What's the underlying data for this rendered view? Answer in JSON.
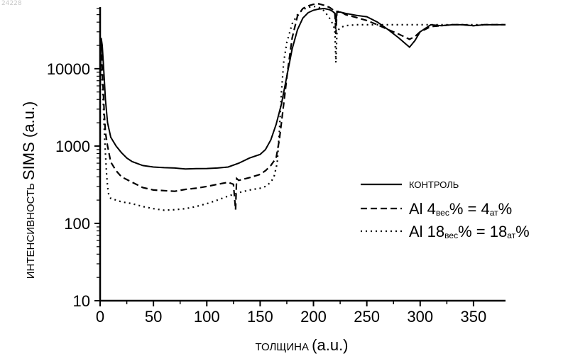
{
  "corner_id": "24228",
  "chart_data": {
    "type": "line",
    "title": "",
    "xlabel": {
      "word": "ТОЛЩИНА",
      "unit": "(a.u.)"
    },
    "ylabel": {
      "word": "ИНТЕНСИВНОСТЬ",
      "unit": "SIMS (a.u.)"
    },
    "xlim": [
      0,
      380
    ],
    "ylim": [
      10,
      60000
    ],
    "yscale": "log",
    "x_ticks": [
      0,
      50,
      100,
      150,
      200,
      250,
      300,
      350
    ],
    "x_tick_labels": [
      "0",
      "50",
      "100",
      "150",
      "200",
      "250",
      "300",
      "350"
    ],
    "y_ticks": [
      10,
      100,
      1000,
      10000
    ],
    "y_tick_labels": [
      "10",
      "100",
      "1000",
      "10000"
    ],
    "grid": false,
    "legend_position": "right-center",
    "series": [
      {
        "name": "КОНТРОЛЬ",
        "style": "solid",
        "color": "#000000",
        "points": [
          [
            0,
            5000
          ],
          [
            1,
            25000
          ],
          [
            2,
            20000
          ],
          [
            3,
            12000
          ],
          [
            4,
            7000
          ],
          [
            5,
            4000
          ],
          [
            7,
            2000
          ],
          [
            10,
            1300
          ],
          [
            15,
            1000
          ],
          [
            20,
            820
          ],
          [
            25,
            700
          ],
          [
            30,
            630
          ],
          [
            40,
            560
          ],
          [
            50,
            535
          ],
          [
            60,
            525
          ],
          [
            70,
            520
          ],
          [
            80,
            505
          ],
          [
            90,
            510
          ],
          [
            100,
            512
          ],
          [
            110,
            520
          ],
          [
            120,
            535
          ],
          [
            130,
            600
          ],
          [
            140,
            700
          ],
          [
            150,
            780
          ],
          [
            155,
            900
          ],
          [
            160,
            1200
          ],
          [
            165,
            1900
          ],
          [
            170,
            3500
          ],
          [
            175,
            8000
          ],
          [
            180,
            18000
          ],
          [
            185,
            32000
          ],
          [
            190,
            45000
          ],
          [
            195,
            53000
          ],
          [
            200,
            57000
          ],
          [
            205,
            59000
          ],
          [
            210,
            60000
          ],
          [
            215,
            58000
          ],
          [
            218,
            55000
          ],
          [
            220,
            52000
          ],
          [
            221,
            40000
          ],
          [
            222,
            54000
          ],
          [
            225,
            54000
          ],
          [
            230,
            52000
          ],
          [
            240,
            49000
          ],
          [
            250,
            47000
          ],
          [
            260,
            40000
          ],
          [
            270,
            32000
          ],
          [
            280,
            25000
          ],
          [
            288,
            20000
          ],
          [
            290,
            19000
          ],
          [
            295,
            23000
          ],
          [
            300,
            30000
          ],
          [
            310,
            37000
          ],
          [
            320,
            36000
          ],
          [
            330,
            37000
          ],
          [
            340,
            37000
          ],
          [
            350,
            36000
          ],
          [
            360,
            37000
          ],
          [
            370,
            37000
          ],
          [
            380,
            37000
          ]
        ]
      },
      {
        "name": "Al 4вес% = 4ат%",
        "style": "dashed",
        "color": "#000000",
        "points": [
          [
            0,
            8000
          ],
          [
            1,
            20000
          ],
          [
            2,
            10000
          ],
          [
            3,
            5000
          ],
          [
            4,
            2500
          ],
          [
            5,
            1500
          ],
          [
            7,
            1000
          ],
          [
            10,
            620
          ],
          [
            15,
            480
          ],
          [
            20,
            400
          ],
          [
            30,
            340
          ],
          [
            40,
            290
          ],
          [
            50,
            270
          ],
          [
            60,
            265
          ],
          [
            70,
            260
          ],
          [
            80,
            275
          ],
          [
            90,
            285
          ],
          [
            100,
            300
          ],
          [
            110,
            320
          ],
          [
            120,
            340
          ],
          [
            125,
            320
          ],
          [
            127,
            150
          ],
          [
            128,
            380
          ],
          [
            130,
            360
          ],
          [
            140,
            390
          ],
          [
            150,
            430
          ],
          [
            155,
            480
          ],
          [
            160,
            560
          ],
          [
            165,
            700
          ],
          [
            168,
            1200
          ],
          [
            170,
            2000
          ],
          [
            173,
            4500
          ],
          [
            176,
            10000
          ],
          [
            180,
            25000
          ],
          [
            185,
            48000
          ],
          [
            190,
            60000
          ],
          [
            195,
            65000
          ],
          [
            200,
            68000
          ],
          [
            205,
            69000
          ],
          [
            210,
            66000
          ],
          [
            215,
            62000
          ],
          [
            218,
            58000
          ],
          [
            220,
            54000
          ],
          [
            221,
            28000
          ],
          [
            222,
            55000
          ],
          [
            225,
            55000
          ],
          [
            230,
            50000
          ],
          [
            240,
            46000
          ],
          [
            250,
            42000
          ],
          [
            260,
            37000
          ],
          [
            270,
            32000
          ],
          [
            280,
            28000
          ],
          [
            290,
            24000
          ],
          [
            295,
            26000
          ],
          [
            300,
            30000
          ],
          [
            310,
            35000
          ],
          [
            320,
            36000
          ],
          [
            330,
            37000
          ],
          [
            340,
            37000
          ],
          [
            350,
            36000
          ],
          [
            360,
            37000
          ],
          [
            370,
            37000
          ],
          [
            380,
            37000
          ]
        ]
      },
      {
        "name": "Al 18вес% = 18ат%",
        "style": "dotted",
        "color": "#000000",
        "points": [
          [
            0,
            6000
          ],
          [
            1,
            12000
          ],
          [
            2,
            7000
          ],
          [
            3,
            3500
          ],
          [
            4,
            1500
          ],
          [
            5,
            800
          ],
          [
            6,
            450
          ],
          [
            7,
            300
          ],
          [
            8,
            240
          ],
          [
            10,
            210
          ],
          [
            15,
            200
          ],
          [
            20,
            190
          ],
          [
            30,
            180
          ],
          [
            40,
            165
          ],
          [
            50,
            155
          ],
          [
            60,
            148
          ],
          [
            70,
            150
          ],
          [
            80,
            155
          ],
          [
            90,
            165
          ],
          [
            100,
            180
          ],
          [
            110,
            200
          ],
          [
            120,
            225
          ],
          [
            130,
            250
          ],
          [
            140,
            270
          ],
          [
            150,
            285
          ],
          [
            155,
            300
          ],
          [
            160,
            340
          ],
          [
            163,
            400
          ],
          [
            166,
            600
          ],
          [
            168,
            1500
          ],
          [
            170,
            5000
          ],
          [
            172,
            12000
          ],
          [
            175,
            22000
          ],
          [
            180,
            38000
          ],
          [
            185,
            50000
          ],
          [
            190,
            58000
          ],
          [
            195,
            62000
          ],
          [
            200,
            64000
          ],
          [
            205,
            62000
          ],
          [
            210,
            56000
          ],
          [
            215,
            45000
          ],
          [
            218,
            38000
          ],
          [
            220,
            32000
          ],
          [
            221,
            12000
          ],
          [
            222,
            30000
          ],
          [
            225,
            34000
          ],
          [
            230,
            36000
          ],
          [
            240,
            37000
          ],
          [
            250,
            37000
          ],
          [
            260,
            37000
          ],
          [
            270,
            37000
          ],
          [
            280,
            37000
          ],
          [
            290,
            37000
          ],
          [
            300,
            37000
          ],
          [
            310,
            37000
          ],
          [
            320,
            37000
          ],
          [
            330,
            37000
          ],
          [
            340,
            37000
          ],
          [
            350,
            37000
          ],
          [
            360,
            37000
          ],
          [
            370,
            37000
          ],
          [
            380,
            37000
          ]
        ]
      }
    ],
    "legend": [
      {
        "prefix": "",
        "sub": "",
        "suffix": "КОНТРОЛЬ",
        "style": "solid",
        "small": true
      },
      {
        "prefix": "Al 4",
        "sub": "вес",
        "suffix": "% = 4",
        "sub2": "ат",
        "suffix2": "%",
        "style": "dashed",
        "small": false
      },
      {
        "prefix": "Al 18",
        "sub": "вес",
        "suffix": "% = 18",
        "sub2": "ат",
        "suffix2": "%",
        "style": "dotted",
        "small": false
      }
    ]
  }
}
